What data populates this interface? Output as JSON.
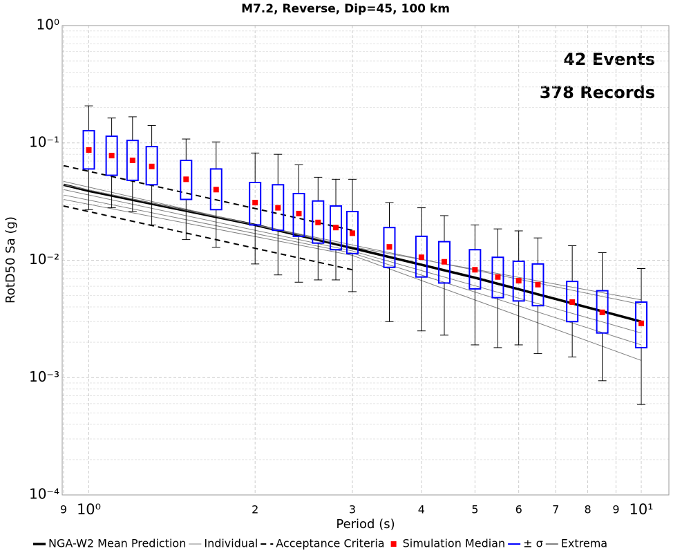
{
  "chart_data": {
    "type": "box",
    "title": "M7.2, Reverse, Dip=45, 100 km",
    "xlabel": "Period (s)",
    "ylabel": "RotD50 Sa (g)",
    "annotations": [
      "42 Events",
      "378 Records"
    ],
    "xscale": "log",
    "yscale": "log",
    "grid": true,
    "xlim": [
      0.895,
      11.22
    ],
    "ylim": [
      0.0001,
      1
    ],
    "xticks": [
      {
        "value": 0.9,
        "label": "9"
      },
      {
        "value": 1,
        "label": "10⁰"
      },
      2,
      3,
      4,
      5,
      6,
      7,
      8,
      9,
      {
        "value": 10,
        "label": "10¹"
      }
    ],
    "yticks": [
      {
        "value": 0.0001,
        "label": "10⁻⁴"
      },
      {
        "value": 0.001,
        "label": "10⁻³"
      },
      {
        "value": 0.01,
        "label": "10⁻²"
      },
      {
        "value": 0.1,
        "label": "10⁻¹"
      },
      {
        "value": 1,
        "label": "10⁰"
      }
    ],
    "x": [
      1.0,
      1.1,
      1.2,
      1.3,
      1.5,
      1.7,
      2.0,
      2.2,
      2.4,
      2.6,
      2.8,
      3.0,
      3.5,
      4.0,
      4.4,
      5.0,
      5.5,
      6.0,
      6.5,
      7.5,
      8.5,
      10
    ],
    "lines": [
      {
        "name": "NGA-W2 Mean Prediction",
        "color": "#000000",
        "width": 3.5,
        "members": [
          {
            "x": [
              0.9,
              1,
              2,
              3,
              5,
              10
            ],
            "values": [
              0.044,
              0.039,
              0.02,
              0.0127,
              0.0071,
              0.003
            ]
          }
        ]
      },
      {
        "name": "Individual",
        "color": "#808080",
        "width": 1,
        "members": [
          {
            "x": [
              0.9,
              3,
              10
            ],
            "values": [
              0.047,
              0.013,
              0.0046
            ]
          },
          {
            "x": [
              0.9,
              3,
              10
            ],
            "values": [
              0.044,
              0.0135,
              0.0042
            ]
          },
          {
            "x": [
              0.9,
              3,
              10
            ],
            "values": [
              0.04,
              0.012,
              0.0024
            ]
          },
          {
            "x": [
              0.9,
              3,
              10
            ],
            "values": [
              0.036,
              0.0115,
              0.0019
            ]
          },
          {
            "x": [
              0.9,
              3,
              10
            ],
            "values": [
              0.033,
              0.011,
              0.0014
            ]
          }
        ]
      },
      {
        "name": "Acceptance Criteria",
        "color": "#000000",
        "width": 2,
        "dashed": true,
        "members": [
          {
            "x": [
              0.9,
              3
            ],
            "values": [
              0.064,
              0.018
            ]
          },
          {
            "x": [
              0.9,
              3
            ],
            "values": [
              0.029,
              0.0083
            ]
          }
        ]
      }
    ],
    "series": [
      {
        "name": "Simulation Median",
        "color": "#ff0000",
        "values": [
          0.087,
          0.078,
          0.071,
          0.063,
          0.049,
          0.04,
          0.031,
          0.028,
          0.025,
          0.021,
          0.019,
          0.017,
          0.013,
          0.0106,
          0.0097,
          0.0083,
          0.0072,
          0.0067,
          0.0062,
          0.0044,
          0.0036,
          0.0029
        ]
      },
      {
        "name": "± σ",
        "color": "#0000ff",
        "upper": [
          0.127,
          0.114,
          0.105,
          0.093,
          0.071,
          0.06,
          0.046,
          0.044,
          0.037,
          0.032,
          0.029,
          0.026,
          0.019,
          0.016,
          0.0144,
          0.0123,
          0.0106,
          0.0098,
          0.0093,
          0.0066,
          0.0055,
          0.0044
        ],
        "lower": [
          0.06,
          0.053,
          0.048,
          0.044,
          0.033,
          0.027,
          0.02,
          0.018,
          0.016,
          0.014,
          0.0123,
          0.0114,
          0.0087,
          0.0072,
          0.0064,
          0.0057,
          0.0048,
          0.0045,
          0.0041,
          0.003,
          0.0024,
          0.0018
        ]
      },
      {
        "name": "Extrema",
        "color": "#000000",
        "max": [
          0.207,
          0.163,
          0.167,
          0.141,
          0.108,
          0.102,
          0.082,
          0.08,
          0.065,
          0.051,
          0.049,
          0.049,
          0.031,
          0.028,
          0.024,
          0.02,
          0.0185,
          0.0178,
          0.0155,
          0.0133,
          0.0116,
          0.0085
        ],
        "min": [
          0.027,
          0.028,
          0.026,
          0.02,
          0.015,
          0.0129,
          0.0093,
          0.0075,
          0.0065,
          0.0068,
          0.0068,
          0.0054,
          0.003,
          0.0025,
          0.0023,
          0.0019,
          0.0018,
          0.0019,
          0.0016,
          0.0015,
          0.00094,
          0.00059
        ]
      }
    ]
  }
}
